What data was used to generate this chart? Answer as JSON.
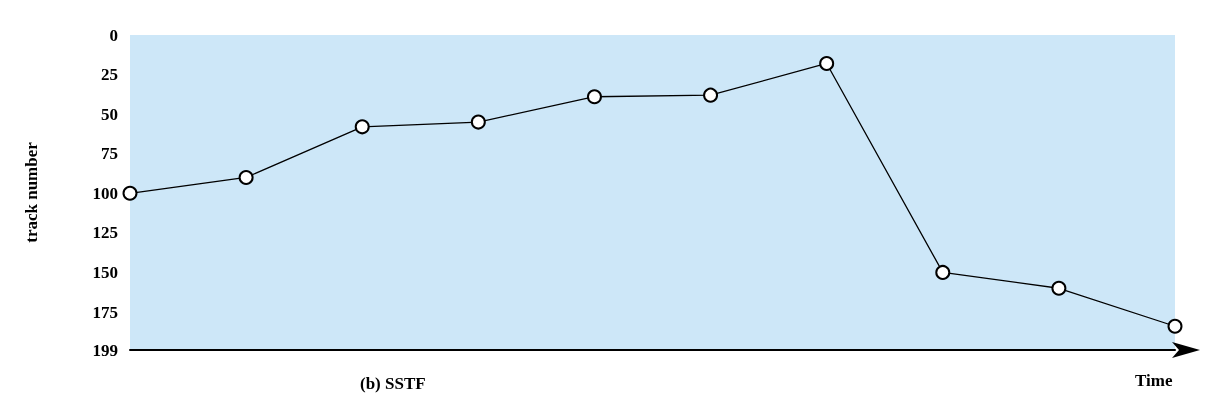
{
  "chart_data": {
    "type": "line",
    "title": "(b) SSTF",
    "xlabel": "Time",
    "ylabel": "track number",
    "categories": [
      null,
      null,
      null,
      null,
      null,
      null,
      null,
      null,
      null,
      null
    ],
    "values": [
      100,
      90,
      58,
      55,
      39,
      38,
      18,
      150,
      160,
      184
    ],
    "color": "#000000",
    "marker": "circle",
    "line_style": "solid",
    "ylim": [
      199,
      0
    ],
    "yticks": [
      0,
      25,
      50,
      75,
      100,
      125,
      150,
      175,
      199
    ],
    "grid": false
  }
}
